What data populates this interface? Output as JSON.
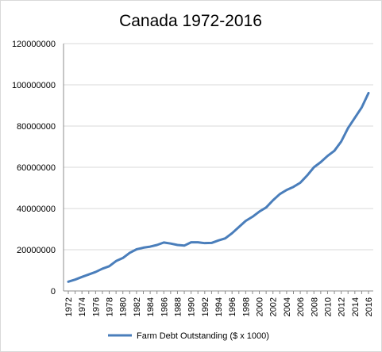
{
  "chart_data": {
    "type": "line",
    "title": "Canada 1972-2016",
    "xlabel": "",
    "ylabel": "",
    "ylim": [
      0,
      120000000
    ],
    "yticks": [
      0,
      20000000,
      40000000,
      60000000,
      80000000,
      100000000,
      120000000
    ],
    "ytick_labels": [
      "0",
      "20000000",
      "40000000",
      "60000000",
      "80000000",
      "100000000",
      "120000000"
    ],
    "x": [
      1972,
      1973,
      1974,
      1975,
      1976,
      1977,
      1978,
      1979,
      1980,
      1981,
      1982,
      1983,
      1984,
      1985,
      1986,
      1987,
      1988,
      1989,
      1990,
      1991,
      1992,
      1993,
      1994,
      1995,
      1996,
      1997,
      1998,
      1999,
      2000,
      2001,
      2002,
      2003,
      2004,
      2005,
      2006,
      2007,
      2008,
      2009,
      2010,
      2011,
      2012,
      2013,
      2014,
      2015,
      2016
    ],
    "xtick_labels": [
      "1972",
      "1974",
      "1976",
      "1978",
      "1980",
      "1982",
      "1984",
      "1986",
      "1988",
      "1990",
      "1992",
      "1994",
      "1996",
      "1998",
      "2000",
      "2002",
      "2004",
      "2006",
      "2008",
      "2010",
      "2012",
      "2014",
      "2016"
    ],
    "grid": true,
    "legend_position": "bottom",
    "series": [
      {
        "name": "Farm Debt Outstanding ($ x 1000)",
        "color": "#4a7ebb",
        "values": [
          4500000,
          5500000,
          6800000,
          8000000,
          9200000,
          10800000,
          12000000,
          14500000,
          16000000,
          18500000,
          20200000,
          21000000,
          21500000,
          22300000,
          23500000,
          23000000,
          22300000,
          22000000,
          23600000,
          23600000,
          23200000,
          23300000,
          24500000,
          25500000,
          28000000,
          31000000,
          34000000,
          36000000,
          38500000,
          40500000,
          44000000,
          47000000,
          49000000,
          50500000,
          52500000,
          56000000,
          60000000,
          62500000,
          65500000,
          68000000,
          72500000,
          79000000,
          84000000,
          89000000,
          96000000
        ]
      }
    ]
  }
}
